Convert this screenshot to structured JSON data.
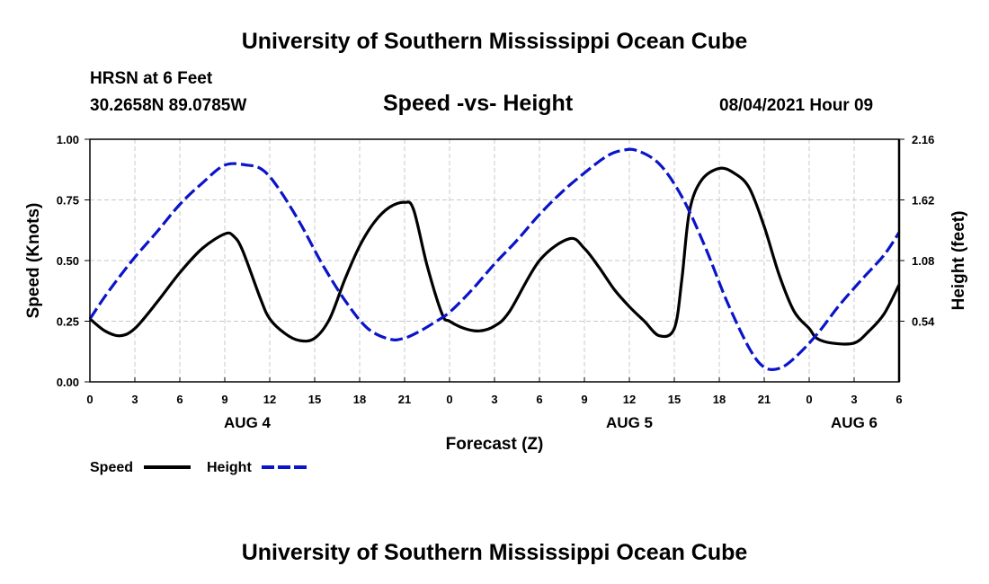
{
  "page": {
    "title_top": "University of Southern Mississippi Ocean Cube",
    "title_bottom": "University of Southern Mississippi Ocean Cube",
    "station": "HRSN at 6 Feet",
    "coords": "30.2658N  89.0785W",
    "datetime": "08/04/2021 Hour 09"
  },
  "colors": {
    "speed": "#000000",
    "height": "#0a14c8",
    "grid": "#c8c8c8"
  },
  "chart_data": {
    "type": "line",
    "title": "Speed -vs- Height",
    "xlabel": "Forecast (Z)",
    "ylabel_left": "Speed (Knots)",
    "ylabel_right": "Height (feet)",
    "x_range": [
      0,
      54
    ],
    "ylim_left": [
      0,
      1
    ],
    "ylim_right": [
      0,
      2.16
    ],
    "x_ticks": [
      0,
      3,
      6,
      9,
      12,
      15,
      18,
      21,
      24,
      27,
      30,
      33,
      36,
      39,
      42,
      45,
      48,
      51,
      54
    ],
    "x_tick_labels": [
      "0",
      "3",
      "6",
      "9",
      "12",
      "15",
      "18",
      "21",
      "0",
      "3",
      "6",
      "9",
      "12",
      "15",
      "18",
      "21",
      "0",
      "3",
      "6"
    ],
    "y_ticks_left": [
      0,
      0.25,
      0.5,
      0.75,
      1.0
    ],
    "y_tick_labels_left": [
      "0.00",
      "0.25",
      "0.50",
      "0.75",
      "1.00"
    ],
    "y_ticks_right": [
      0.54,
      1.08,
      1.62,
      2.16
    ],
    "y_tick_labels_right": [
      "0.54",
      "1.08",
      "1.62",
      "2.16"
    ],
    "day_labels": [
      {
        "label": "AUG 4",
        "x": 10.5
      },
      {
        "label": "AUG 5",
        "x": 36
      },
      {
        "label": "AUG 6",
        "x": 51
      }
    ],
    "grid": true,
    "series": [
      {
        "name": "Speed",
        "axis": "left",
        "style": "solid",
        "x": [
          0,
          1,
          2,
          3,
          4.5,
          6,
          7.5,
          9,
          9.6,
          10.2,
          11.4,
          12,
          13,
          14,
          15,
          16,
          17,
          18,
          19,
          20,
          21,
          21.6,
          22.5,
          23.5,
          24,
          25,
          26,
          27,
          28,
          30,
          32,
          33,
          34,
          35,
          36,
          37,
          38,
          39,
          39.5,
          40,
          40.8,
          42,
          43,
          44,
          45,
          46,
          47,
          48,
          48.5,
          49.5,
          51,
          52,
          53,
          54
        ],
        "values": [
          0.26,
          0.21,
          0.19,
          0.22,
          0.33,
          0.45,
          0.55,
          0.61,
          0.6,
          0.54,
          0.34,
          0.26,
          0.2,
          0.17,
          0.18,
          0.26,
          0.42,
          0.56,
          0.66,
          0.72,
          0.74,
          0.71,
          0.48,
          0.28,
          0.25,
          0.22,
          0.21,
          0.23,
          0.29,
          0.5,
          0.59,
          0.55,
          0.47,
          0.38,
          0.31,
          0.25,
          0.19,
          0.22,
          0.42,
          0.7,
          0.83,
          0.88,
          0.86,
          0.8,
          0.64,
          0.44,
          0.29,
          0.22,
          0.18,
          0.16,
          0.16,
          0.21,
          0.28,
          0.4
        ]
      },
      {
        "name": "Height",
        "axis": "right",
        "style": "dashed",
        "x": [
          0,
          1,
          2,
          3,
          4.5,
          6,
          7.5,
          9,
          10.5,
          11.5,
          12.5,
          14,
          15.5,
          17,
          18.5,
          20,
          21,
          22,
          23,
          24,
          25.5,
          27,
          28.5,
          30,
          31.5,
          33,
          34.5,
          35.5,
          36.5,
          38,
          39.5,
          41,
          42.5,
          44,
          45,
          46,
          47,
          48.5,
          50,
          51.5,
          53,
          54
        ],
        "values": [
          0.56,
          0.76,
          0.94,
          1.11,
          1.34,
          1.58,
          1.77,
          1.93,
          1.93,
          1.89,
          1.74,
          1.42,
          1.05,
          0.73,
          0.48,
          0.38,
          0.39,
          0.45,
          0.53,
          0.62,
          0.82,
          1.05,
          1.26,
          1.49,
          1.69,
          1.86,
          2.01,
          2.06,
          2.06,
          1.94,
          1.65,
          1.22,
          0.72,
          0.3,
          0.13,
          0.12,
          0.21,
          0.42,
          0.68,
          0.91,
          1.13,
          1.33
        ]
      }
    ],
    "legend": [
      {
        "label": "Speed",
        "style": "solid"
      },
      {
        "label": "Height",
        "style": "dashed"
      }
    ]
  }
}
